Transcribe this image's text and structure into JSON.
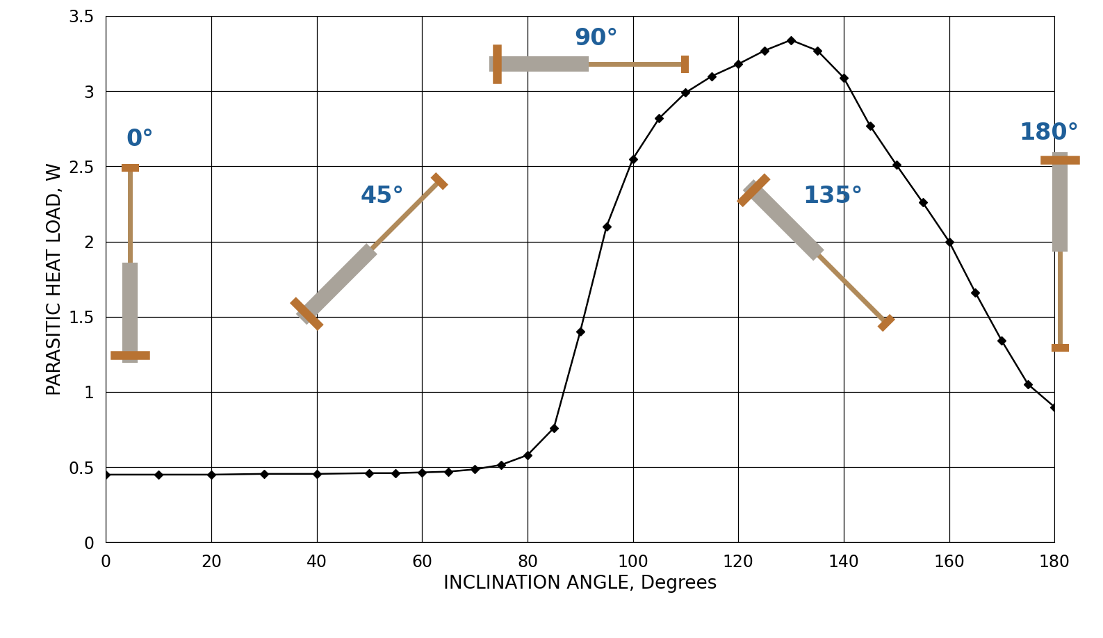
{
  "chart_data": {
    "type": "line",
    "x_label": "INCLINATION ANGLE, Degrees",
    "y_label": "PARASITIC HEAT LOAD, W",
    "x": [
      0,
      10,
      20,
      30,
      40,
      50,
      55,
      60,
      65,
      70,
      75,
      80,
      85,
      90,
      95,
      100,
      105,
      110,
      115,
      120,
      125,
      130,
      135,
      140,
      145,
      150,
      155,
      160,
      165,
      170,
      175,
      180
    ],
    "values": [
      0.45,
      0.45,
      0.45,
      0.455,
      0.455,
      0.46,
      0.46,
      0.465,
      0.47,
      0.485,
      0.515,
      0.58,
      0.76,
      1.4,
      2.1,
      2.55,
      2.82,
      2.99,
      3.1,
      3.18,
      3.27,
      3.34,
      3.27,
      3.09,
      2.77,
      2.51,
      2.26,
      2.0,
      1.66,
      1.34,
      1.05,
      0.9
    ],
    "color": "#000000",
    "marker": "diamond",
    "line_style": "solid",
    "xlim": [
      0,
      180
    ],
    "xticks": [
      0,
      20,
      40,
      60,
      80,
      100,
      120,
      140,
      160,
      180
    ],
    "ylim": [
      0,
      3.5
    ],
    "yticks": [
      0,
      0.5,
      1,
      1.5,
      2,
      2.5,
      3,
      3.5
    ],
    "grid": true,
    "annotations": [
      "0°",
      "45°",
      "90°",
      "135°",
      "180°"
    ]
  }
}
